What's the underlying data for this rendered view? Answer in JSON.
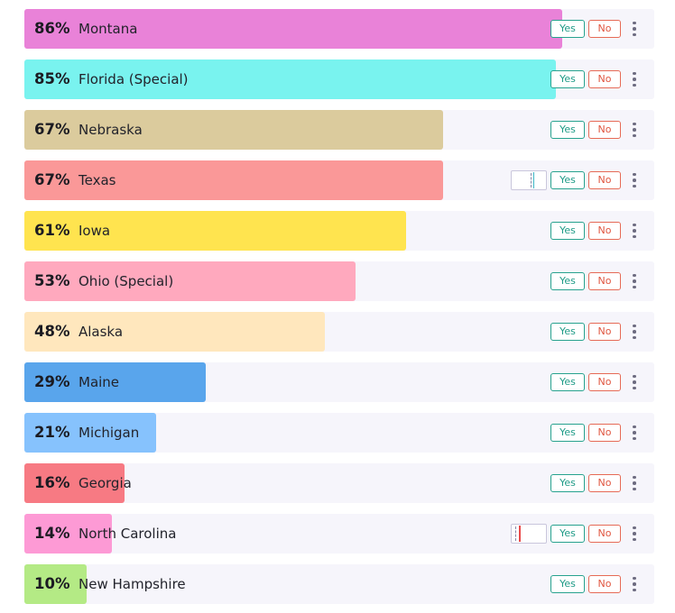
{
  "races": [
    {
      "name": "Montana",
      "percent": 86,
      "pct_label": "86%",
      "color": "#e982d8",
      "yes_label": "Yes",
      "no_label": "No"
    },
    {
      "name": "Florida (Special)",
      "percent": 85,
      "pct_label": "85%",
      "color": "#79f3ef",
      "yes_label": "Yes",
      "no_label": "No"
    },
    {
      "name": "Nebraska",
      "percent": 67,
      "pct_label": "67%",
      "color": "#dbcb9d",
      "yes_label": "Yes",
      "no_label": "No"
    },
    {
      "name": "Texas",
      "percent": 67,
      "pct_label": "67%",
      "color": "#fa9898",
      "yes_label": "Yes",
      "no_label": "No",
      "indicator": {
        "mark_color": "#3fb8c8",
        "mark_fraction": 0.64
      }
    },
    {
      "name": "Iowa",
      "percent": 61,
      "pct_label": "61%",
      "color": "#ffe44f",
      "yes_label": "Yes",
      "no_label": "No"
    },
    {
      "name": "Ohio (Special)",
      "percent": 53,
      "pct_label": "53%",
      "color": "#ffa9be",
      "yes_label": "Yes",
      "no_label": "No"
    },
    {
      "name": "Alaska",
      "percent": 48,
      "pct_label": "48%",
      "color": "#ffe7bd",
      "yes_label": "Yes",
      "no_label": "No"
    },
    {
      "name": "Maine",
      "percent": 29,
      "pct_label": "29%",
      "color": "#59a5ec",
      "yes_label": "Yes",
      "no_label": "No"
    },
    {
      "name": "Michigan",
      "percent": 21,
      "pct_label": "21%",
      "color": "#86c2fd",
      "yes_label": "Yes",
      "no_label": "No"
    },
    {
      "name": "Georgia",
      "percent": 16,
      "pct_label": "16%",
      "color": "#f77a83",
      "yes_label": "Yes",
      "no_label": "No"
    },
    {
      "name": "North Carolina",
      "percent": 14,
      "pct_label": "14%",
      "color": "#fd9ad5",
      "yes_label": "Yes",
      "no_label": "No",
      "indicator": {
        "mark_color": "#e94a4a",
        "mark_fraction": 0.2
      }
    },
    {
      "name": "New Hampshire",
      "percent": 10,
      "pct_label": "10%",
      "color": "#b4ea85",
      "yes_label": "Yes",
      "no_label": "No"
    }
  ]
}
